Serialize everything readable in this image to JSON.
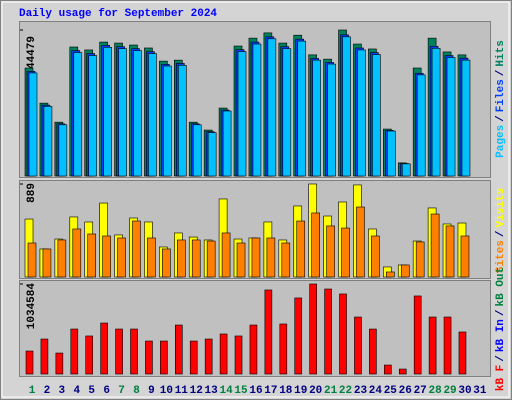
{
  "title": "Daily usage for September 2024",
  "legend_separator": "/",
  "chart_data": [
    {
      "type": "bar",
      "series": [
        {
          "name": "Pages",
          "color": "#00c0ff",
          "values": [
            31400,
            21200,
            15600,
            37600,
            36700,
            39200,
            38800,
            38200,
            37300,
            33500,
            33700,
            15600,
            13200,
            19800,
            37900,
            40200,
            41800,
            38800,
            41100,
            35300,
            34100,
            42400,
            38400,
            37000,
            13700,
            3700,
            30800,
            38900,
            36100,
            35300,
            null
          ]
        },
        {
          "name": "Files",
          "color": "#0040ff",
          "values": [
            31900,
            21600,
            15900,
            38200,
            37300,
            39800,
            39400,
            38800,
            37900,
            34000,
            34300,
            15900,
            13500,
            20100,
            38500,
            40800,
            42400,
            39400,
            41700,
            35800,
            34600,
            43000,
            39000,
            37600,
            13900,
            3800,
            31300,
            39500,
            36700,
            35900,
            null
          ]
        },
        {
          "name": "Hits",
          "color": "#00805c",
          "values": [
            32900,
            22200,
            16400,
            39300,
            38400,
            40800,
            40500,
            39900,
            39000,
            35000,
            35300,
            16400,
            14000,
            20700,
            39600,
            42000,
            43600,
            40500,
            42900,
            36900,
            35600,
            44479,
            40200,
            38700,
            14300,
            4000,
            32900,
            42000,
            37800,
            36900,
            null
          ]
        }
      ],
      "ylim": [
        0,
        44479
      ],
      "yticks": [
        44479
      ]
    },
    {
      "type": "bar",
      "series": [
        {
          "name": "Sites",
          "color": "#ff8000",
          "values": [
            325,
            268,
            354,
            459,
            411,
            392,
            373,
            535,
            373,
            268,
            354,
            354,
            344,
            421,
            325,
            373,
            373,
            325,
            535,
            612,
            488,
            468,
            669,
            392,
            48,
            115,
            335,
            602,
            488,
            392,
            null
          ]
        },
        {
          "name": "Visits",
          "color": "#ffff00",
          "values": [
            554,
            268,
            363,
            574,
            526,
            707,
            402,
            564,
            526,
            287,
            421,
            382,
            354,
            746,
            363,
            373,
            526,
            354,
            679,
            889,
            583,
            717,
            880,
            459,
            96,
            115,
            344,
            660,
            507,
            516,
            null
          ]
        }
      ],
      "ylim": [
        0,
        889
      ],
      "yticks": [
        889
      ]
    },
    {
      "type": "bar",
      "categories": [
        "1",
        "2",
        "3",
        "4",
        "5",
        "6",
        "7",
        "8",
        "9",
        "10",
        "11",
        "12",
        "13",
        "14",
        "15",
        "16",
        "17",
        "18",
        "19",
        "20",
        "21",
        "22",
        "23",
        "24",
        "25",
        "26",
        "27",
        "28",
        "29",
        "30",
        "31"
      ],
      "label_colors": [
        "#008040",
        "#000080",
        "#000080",
        "#000080",
        "#000080",
        "#000080",
        "#008040",
        "#008040",
        "#000080",
        "#000080",
        "#000080",
        "#000080",
        "#000080",
        "#008040",
        "#008040",
        "#000080",
        "#000080",
        "#000080",
        "#000080",
        "#000080",
        "#008040",
        "#008040",
        "#000080",
        "#000080",
        "#000080",
        "#000080",
        "#000080",
        "#008040",
        "#008040",
        "#000080",
        "#000080"
      ],
      "series": [
        {
          "name": "kB F",
          "color": "#ff0000",
          "values": [
            264000,
            402000,
            241000,
            517000,
            437000,
            586000,
            517000,
            517000,
            379000,
            379000,
            563000,
            379000,
            402000,
            460000,
            437000,
            563000,
            966000,
            575000,
            874000,
            1034584,
            977000,
            920000,
            655000,
            517000,
            103000,
            57000,
            897000,
            655000,
            655000,
            483000,
            null
          ]
        }
      ],
      "legend_only": [
        {
          "name": "kB In",
          "color": "#0000ff"
        },
        {
          "name": "kB Out",
          "color": "#008040"
        }
      ],
      "ylim": [
        0,
        1034584
      ],
      "yticks": [
        1034584
      ]
    }
  ]
}
